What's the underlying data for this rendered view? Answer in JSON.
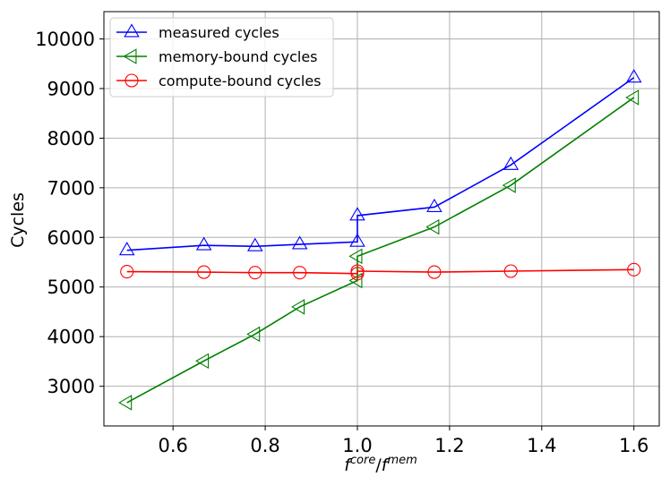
{
  "chart_data": {
    "type": "line",
    "xlabel": {
      "base1": "f",
      "sup1": "core",
      "sep": "/",
      "base2": "f",
      "sup2": "mem"
    },
    "ylabel": "Cycles",
    "xlim": [
      0.45,
      1.655
    ],
    "ylim": [
      2200,
      10550
    ],
    "x_ticks": [
      0.6,
      0.8,
      1.0,
      1.2,
      1.4,
      1.6
    ],
    "x_tick_labels": [
      "0.6",
      "0.8",
      "1.0",
      "1.2",
      "1.4",
      "1.6"
    ],
    "y_ticks": [
      3000,
      4000,
      5000,
      6000,
      7000,
      8000,
      9000,
      10000
    ],
    "y_tick_labels": [
      "3000",
      "4000",
      "5000",
      "6000",
      "7000",
      "8000",
      "9000",
      "10000"
    ],
    "grid": true,
    "legend_position": "top-left",
    "series": [
      {
        "name": "measured cycles",
        "color": "#0000ff",
        "marker": "triangle-up",
        "x": [
          0.5,
          0.667,
          0.778,
          0.875,
          1.0,
          1.0,
          1.167,
          1.333,
          1.6
        ],
        "y": [
          5740,
          5840,
          5820,
          5860,
          5910,
          6440,
          6610,
          7460,
          9220
        ]
      },
      {
        "name": "memory-bound cycles",
        "color": "#008000",
        "marker": "triangle-left",
        "x": [
          0.5,
          0.667,
          0.778,
          0.875,
          1.0,
          1.0,
          1.167,
          1.333,
          1.6
        ],
        "y": [
          2670,
          3510,
          4050,
          4600,
          5130,
          5620,
          6210,
          7050,
          8820
        ]
      },
      {
        "name": "compute-bound cycles",
        "color": "#ff0000",
        "marker": "circle",
        "x": [
          0.5,
          0.667,
          0.778,
          0.875,
          1.0,
          1.0,
          1.167,
          1.333,
          1.6
        ],
        "y": [
          5310,
          5300,
          5290,
          5290,
          5270,
          5320,
          5300,
          5320,
          5350
        ]
      }
    ]
  }
}
